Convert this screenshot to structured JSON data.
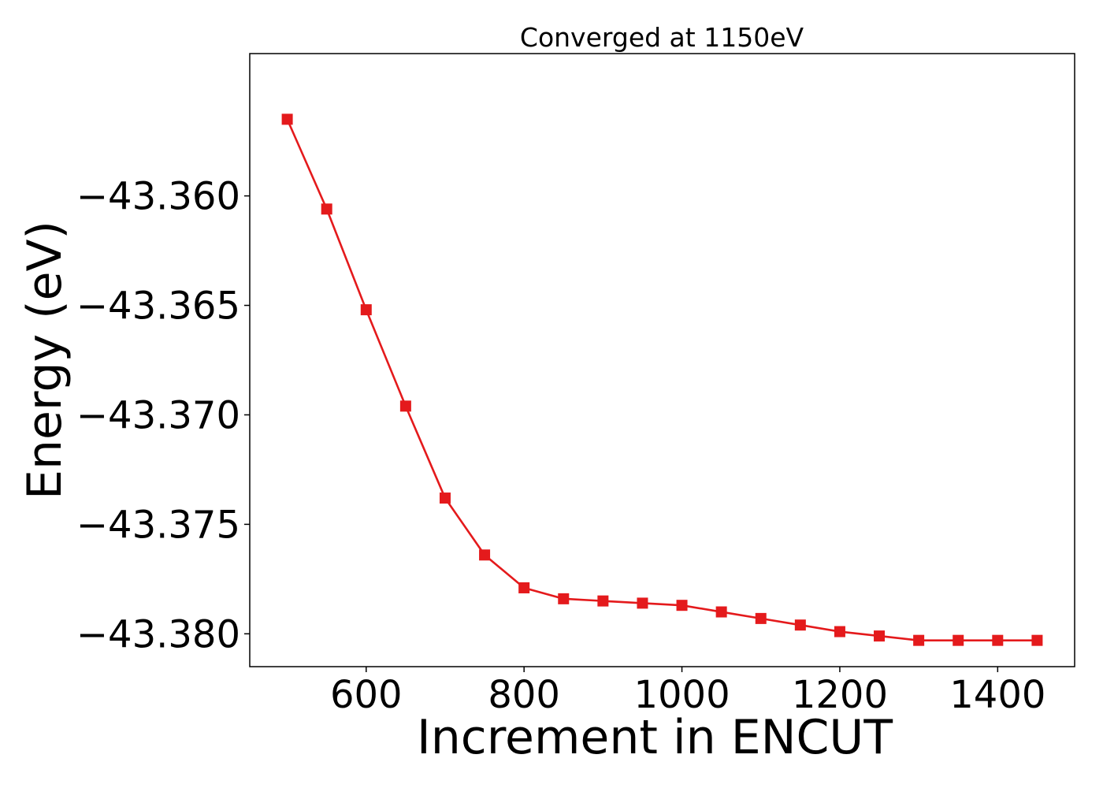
{
  "chart_data": {
    "type": "line",
    "title": "Converged at 1150eV",
    "xlabel": "Increment in ENCUT",
    "ylabel": "Energy (eV)",
    "xlim": [
      452.5,
      1497.5
    ],
    "ylim": [
      -43.3815,
      -43.3535
    ],
    "xticks": [
      600,
      800,
      1000,
      1200,
      1400
    ],
    "xtick_labels": [
      "600",
      "800",
      "1000",
      "1200",
      "1400"
    ],
    "yticks": [
      -43.36,
      -43.365,
      -43.37,
      -43.375,
      -43.38
    ],
    "ytick_labels": [
      "−43.360",
      "−43.365",
      "−43.370",
      "−43.375",
      "−43.380"
    ],
    "grid": false,
    "legend": "none",
    "series": [
      {
        "color": "#e41a1c",
        "marker": "square",
        "x": [
          500,
          550,
          600,
          650,
          700,
          750,
          800,
          850,
          900,
          950,
          1000,
          1050,
          1100,
          1150,
          1200,
          1250,
          1300,
          1350,
          1400,
          1450
        ],
        "y": [
          -43.3565,
          -43.3606,
          -43.3652,
          -43.3696,
          -43.3738,
          -43.3764,
          -43.3779,
          -43.3784,
          -43.3785,
          -43.3786,
          -43.3787,
          -43.379,
          -43.3793,
          -43.3796,
          -43.3799,
          -43.3801,
          -43.3803,
          -43.3803,
          -43.3803,
          -43.3803
        ]
      }
    ]
  }
}
